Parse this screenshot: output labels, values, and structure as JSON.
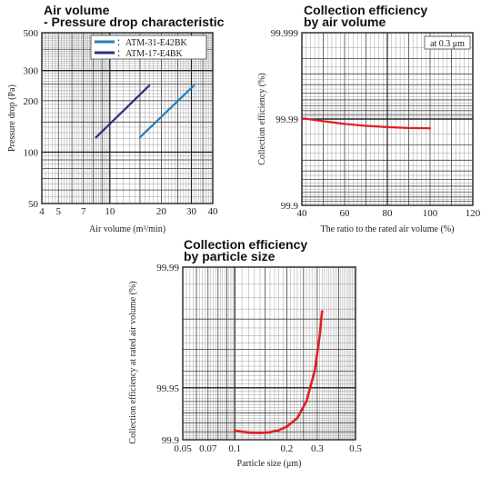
{
  "chart_data": [
    {
      "type": "line",
      "title": "Air volume\n- Pressure drop characteristic",
      "xlabel": "Air volume (m³/min)",
      "ylabel": "Pressure drop (Pa)",
      "x_scale": "log",
      "y_scale": "log",
      "xlim": [
        4,
        40
      ],
      "ylim": [
        50,
        500
      ],
      "x_ticks": [
        4,
        5,
        7,
        10,
        20,
        30,
        40
      ],
      "y_ticks": [
        50,
        100,
        200,
        300,
        500
      ],
      "legend_position": "top-right",
      "grid": true,
      "series": [
        {
          "name": "：ATM-31-E42BK",
          "color": "#1f7ec2",
          "x": [
            15,
            31
          ],
          "y": [
            122,
            245
          ]
        },
        {
          "name": "：ATM-17-E4BK",
          "color": "#2b2d83",
          "x": [
            8.3,
            17
          ],
          "y": [
            122,
            245
          ]
        }
      ]
    },
    {
      "type": "line",
      "title": "Collection efficiency\nby air volume",
      "xlabel": "The ratio to the rated air volume (%)",
      "ylabel": "Collection efficiency (%)",
      "annotation": "at 0.3 μm",
      "xlim": [
        40,
        120
      ],
      "ylim": [
        99.9,
        99.999
      ],
      "y_scale": "log(100 - y)",
      "x_ticks": [
        40,
        60,
        80,
        100,
        120
      ],
      "y_ticks": [
        99.9,
        99.99,
        99.999
      ],
      "grid": true,
      "series": [
        {
          "color": "#e01e25",
          "x": [
            40,
            50,
            60,
            70,
            80,
            90,
            100
          ],
          "y": [
            99.9902,
            99.9894,
            99.9886,
            99.988,
            99.9876,
            99.9873,
            99.9872
          ]
        }
      ]
    },
    {
      "type": "line",
      "title": "Collection efficiency\nby particle size",
      "xlabel": "Particle size (μm)",
      "ylabel": "Collection efficiency at rated air volume (%)",
      "x_scale": "log",
      "xlim": [
        0.05,
        0.5
      ],
      "ylim": [
        99.9,
        99.99
      ],
      "x_ticks": [
        0.05,
        0.07,
        0.1,
        0.2,
        0.3,
        0.5
      ],
      "y_ticks": [
        99.9,
        99.95,
        99.99
      ],
      "grid": true,
      "series": [
        {
          "color": "#e01e25",
          "x": [
            0.1,
            0.12,
            0.14,
            0.16,
            0.18,
            0.2,
            0.23,
            0.26,
            0.29,
            0.31,
            0.32
          ],
          "y": [
            99.9112,
            99.9093,
            99.9087,
            99.9096,
            99.912,
            99.916,
            99.925,
            99.94,
            99.96,
            99.975,
            99.982
          ]
        }
      ]
    }
  ]
}
